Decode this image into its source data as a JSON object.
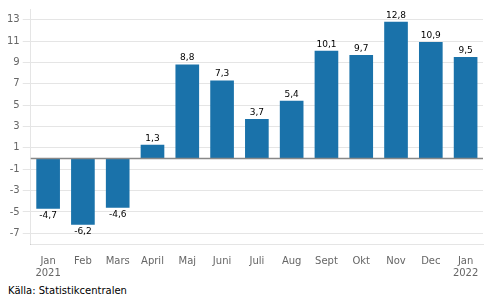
{
  "chart_data": {
    "type": "bar",
    "categories": [
      "Jan\n2021",
      "Feb",
      "Mars",
      "April",
      "Maj",
      "Juni",
      "Juli",
      "Aug",
      "Sept",
      "Okt",
      "Nov",
      "Dec",
      "Jan\n2022"
    ],
    "values": [
      -4.7,
      -6.2,
      -4.6,
      1.3,
      8.8,
      7.3,
      3.7,
      5.4,
      10.1,
      9.7,
      12.8,
      10.9,
      9.5
    ],
    "value_labels": [
      "-4,7",
      "-6,2",
      "-4,6",
      "1,3",
      "8,8",
      "7,3",
      "3,7",
      "5,4",
      "10,1",
      "9,7",
      "12,8",
      "10,9",
      "9,5"
    ],
    "data_labels": true,
    "color": "#1a72aa",
    "ylim": [
      -8,
      14
    ],
    "yticks": [
      -7,
      -5,
      -3,
      -1,
      1,
      3,
      5,
      7,
      9,
      11,
      13
    ],
    "grid": true,
    "annotation": "Källa: Statistikcentralen"
  }
}
